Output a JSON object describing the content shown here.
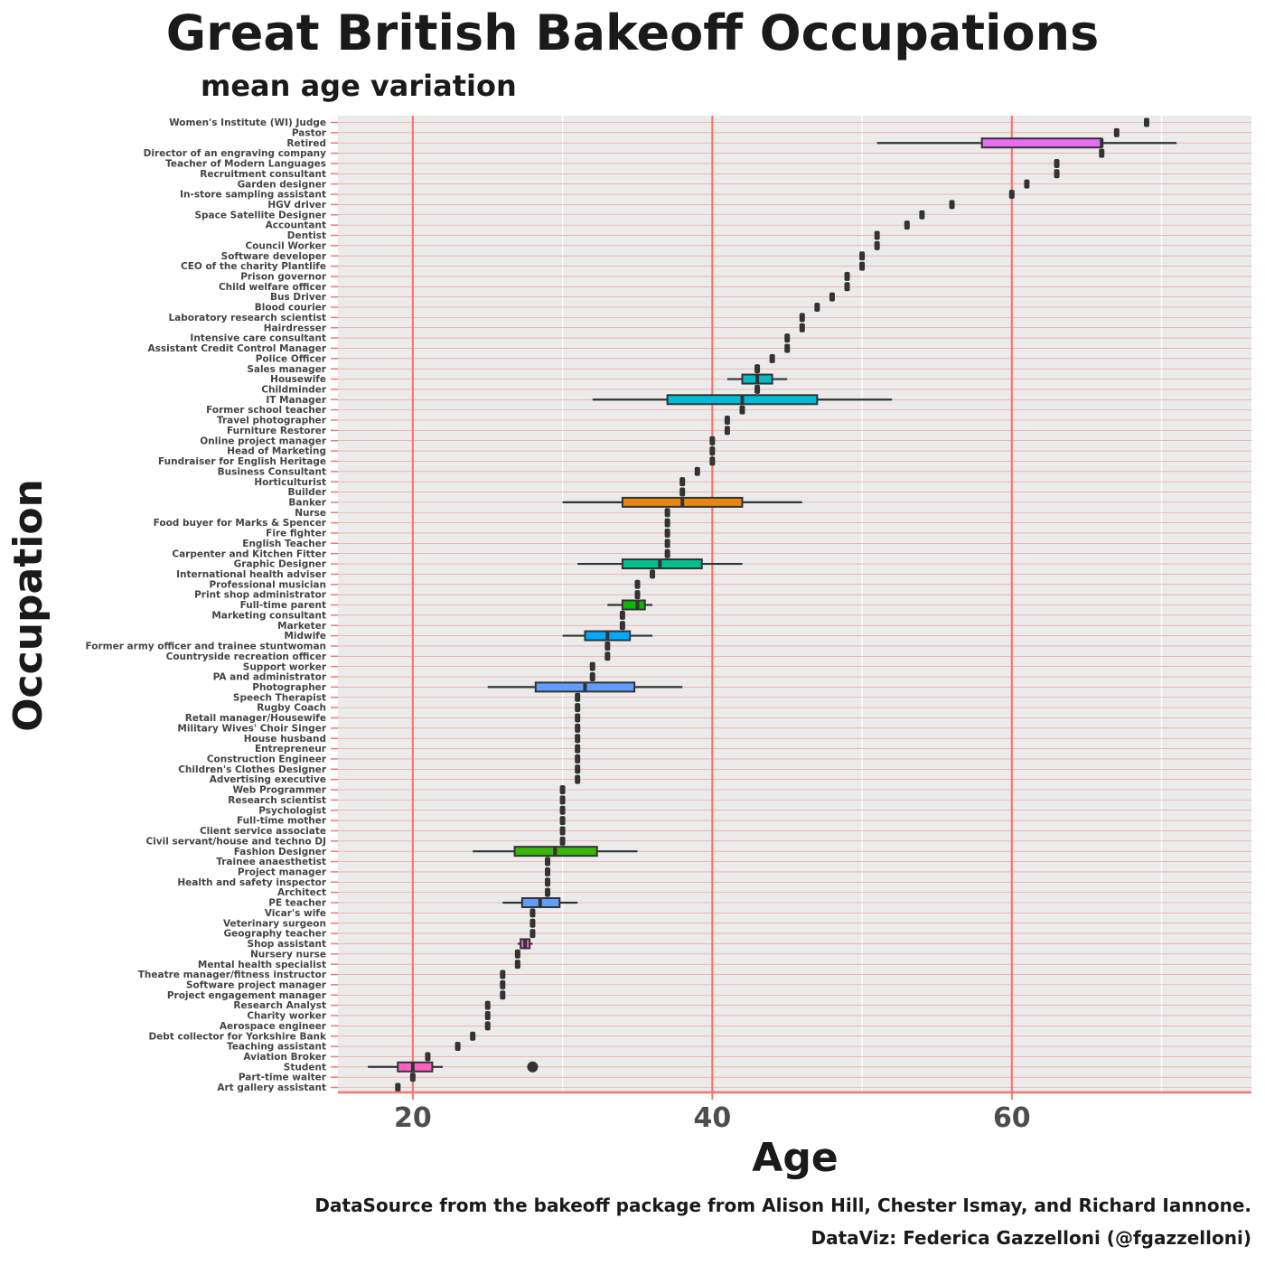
{
  "chart_data": {
    "type": "boxplot",
    "title": "Great British Bakeoff Occupations",
    "subtitle": "mean age variation",
    "xlabel": "Age",
    "ylabel": "Occupation",
    "xlim": [
      15,
      76
    ],
    "xticks": [
      20,
      40,
      60
    ],
    "caption_line1": "DataSource from the bakeoff package from Alison Hill, Chester Ismay, and Richard Iannone.",
    "caption_line2": "DataViz: Federica Gazzelloni (@fgazzelloni)",
    "colors": {
      "panel": "#ebebeb",
      "accent": "#f8766d",
      "text": "#1a1a1a",
      "box_stroke": "#333333"
    },
    "occupations": [
      {
        "name": "Women's Institute (WI) Judge",
        "value": 69
      },
      {
        "name": "Pastor",
        "value": 67
      },
      {
        "name": "Retired",
        "min": 51,
        "q1": 58,
        "median": 66,
        "q3": 66,
        "max": 71,
        "color": "#e76bf3"
      },
      {
        "name": "Director of an engraving company",
        "value": 66
      },
      {
        "name": "Teacher of Modern Languages",
        "value": 63
      },
      {
        "name": "Recruitment consultant",
        "value": 63
      },
      {
        "name": "Garden designer",
        "value": 61
      },
      {
        "name": "In-store sampling assistant",
        "value": 60
      },
      {
        "name": "HGV driver",
        "value": 56
      },
      {
        "name": "Space Satellite Designer",
        "value": 54
      },
      {
        "name": "Accountant",
        "value": 53
      },
      {
        "name": "Dentist",
        "value": 51
      },
      {
        "name": "Council Worker",
        "value": 51
      },
      {
        "name": "Software developer",
        "value": 50
      },
      {
        "name": "CEO of the charity Plantlife",
        "value": 50
      },
      {
        "name": "Prison governor",
        "value": 49
      },
      {
        "name": "Child welfare officer",
        "value": 49
      },
      {
        "name": "Bus Driver",
        "value": 48
      },
      {
        "name": "Blood courier",
        "value": 47
      },
      {
        "name": "Laboratory research scientist",
        "value": 46
      },
      {
        "name": "Hairdresser",
        "value": 46
      },
      {
        "name": "Intensive care consultant",
        "value": 45
      },
      {
        "name": "Assistant Credit Control Manager",
        "value": 45
      },
      {
        "name": "Police Officer",
        "value": 44
      },
      {
        "name": "Sales manager",
        "value": 43
      },
      {
        "name": "Housewife",
        "min": 41,
        "q1": 42,
        "median": 43,
        "q3": 44,
        "max": 45,
        "color": "#00bfc4"
      },
      {
        "name": "Childminder",
        "value": 43
      },
      {
        "name": "IT Manager",
        "min": 32,
        "q1": 37,
        "median": 42,
        "q3": 47,
        "max": 52,
        "color": "#00bcd8"
      },
      {
        "name": "Former school teacher",
        "value": 42
      },
      {
        "name": "Travel photographer",
        "value": 41
      },
      {
        "name": "Furniture Restorer",
        "value": 41
      },
      {
        "name": "Online project manager",
        "value": 40
      },
      {
        "name": "Head of Marketing",
        "value": 40
      },
      {
        "name": "Fundraiser for English Heritage",
        "value": 40
      },
      {
        "name": "Business Consultant",
        "value": 39
      },
      {
        "name": "Horticulturist",
        "value": 38
      },
      {
        "name": "Builder",
        "value": 38
      },
      {
        "name": "Banker",
        "min": 30,
        "q1": 34,
        "median": 38,
        "q3": 42,
        "max": 46,
        "color": "#e68613"
      },
      {
        "name": "Nurse",
        "value": 37
      },
      {
        "name": "Food buyer for Marks & Spencer",
        "value": 37
      },
      {
        "name": "Fire fighter",
        "value": 37
      },
      {
        "name": "English Teacher",
        "value": 37
      },
      {
        "name": "Carpenter and Kitchen Fitter",
        "value": 37
      },
      {
        "name": "Graphic Designer",
        "min": 31,
        "q1": 34,
        "median": 36.5,
        "q3": 39.3,
        "max": 42,
        "color": "#00c08b"
      },
      {
        "name": "International health adviser",
        "value": 36
      },
      {
        "name": "Professional musician",
        "value": 35
      },
      {
        "name": "Print shop administrator",
        "value": 35
      },
      {
        "name": "Full-time parent",
        "min": 33,
        "q1": 34,
        "median": 35,
        "q3": 35.5,
        "max": 36,
        "color": "#0cb702"
      },
      {
        "name": "Marketing consultant",
        "value": 34
      },
      {
        "name": "Marketer",
        "value": 34
      },
      {
        "name": "Midwife",
        "min": 30,
        "q1": 31.5,
        "median": 33,
        "q3": 34.5,
        "max": 36,
        "color": "#00a9ff"
      },
      {
        "name": "Former army officer and trainee stuntwoman",
        "value": 33
      },
      {
        "name": "Countryside recreation officer",
        "value": 33
      },
      {
        "name": "Support worker",
        "value": 32
      },
      {
        "name": "PA and administrator",
        "value": 32
      },
      {
        "name": "Photographer",
        "min": 25,
        "q1": 28.2,
        "median": 31.5,
        "q3": 34.8,
        "max": 38,
        "color": "#619cff"
      },
      {
        "name": "Speech Therapist",
        "value": 31
      },
      {
        "name": "Rugby Coach",
        "value": 31
      },
      {
        "name": "Retail manager/Housewife",
        "value": 31
      },
      {
        "name": "Military Wives' Choir Singer",
        "value": 31
      },
      {
        "name": "House husband",
        "value": 31
      },
      {
        "name": "Entrepreneur",
        "value": 31
      },
      {
        "name": "Construction Engineer",
        "value": 31
      },
      {
        "name": "Children's Clothes Designer",
        "value": 31
      },
      {
        "name": "Advertising executive",
        "value": 31
      },
      {
        "name": "Web Programmer",
        "value": 30
      },
      {
        "name": "Research scientist",
        "value": 30
      },
      {
        "name": "Psychologist",
        "value": 30
      },
      {
        "name": "Full-time mother",
        "value": 30
      },
      {
        "name": "Client service associate",
        "value": 30
      },
      {
        "name": "Civil servant/house and techno DJ",
        "value": 30
      },
      {
        "name": "Fashion Designer",
        "min": 24,
        "q1": 26.8,
        "median": 29.5,
        "q3": 32.3,
        "max": 35,
        "color": "#39b600"
      },
      {
        "name": "Trainee anaesthetist",
        "value": 29
      },
      {
        "name": "Project manager",
        "value": 29
      },
      {
        "name": "Health and safety inspector",
        "value": 29
      },
      {
        "name": "Architect",
        "value": 29
      },
      {
        "name": "PE teacher",
        "min": 26,
        "q1": 27.3,
        "median": 28.5,
        "q3": 29.8,
        "max": 31,
        "color": "#619cff"
      },
      {
        "name": "Vicar's wife",
        "value": 28
      },
      {
        "name": "Veterinary surgeon",
        "value": 28
      },
      {
        "name": "Geography teacher",
        "value": 28
      },
      {
        "name": "Shop assistant",
        "min": 27,
        "q1": 27.2,
        "median": 27.5,
        "q3": 27.8,
        "max": 28,
        "color": "#fd61d1"
      },
      {
        "name": "Nursery nurse",
        "value": 27
      },
      {
        "name": "Mental health specialist",
        "value": 27
      },
      {
        "name": "Theatre manager/fitness instructor",
        "value": 26
      },
      {
        "name": "Software project manager",
        "value": 26
      },
      {
        "name": "Project engagement manager",
        "value": 26
      },
      {
        "name": "Research Analyst",
        "value": 25
      },
      {
        "name": "Charity worker",
        "value": 25
      },
      {
        "name": "Aerospace engineer",
        "value": 25
      },
      {
        "name": "Debt collector for Yorkshire Bank",
        "value": 24
      },
      {
        "name": "Teaching assistant",
        "value": 23
      },
      {
        "name": "Aviation Broker",
        "value": 21
      },
      {
        "name": "Student",
        "min": 17,
        "q1": 19,
        "median": 20,
        "q3": 21.3,
        "max": 22,
        "outliers": [
          28
        ],
        "color": "#ff61c3"
      },
      {
        "name": "Part-time waiter",
        "value": 20
      },
      {
        "name": "Art gallery assistant",
        "value": 19
      }
    ]
  }
}
